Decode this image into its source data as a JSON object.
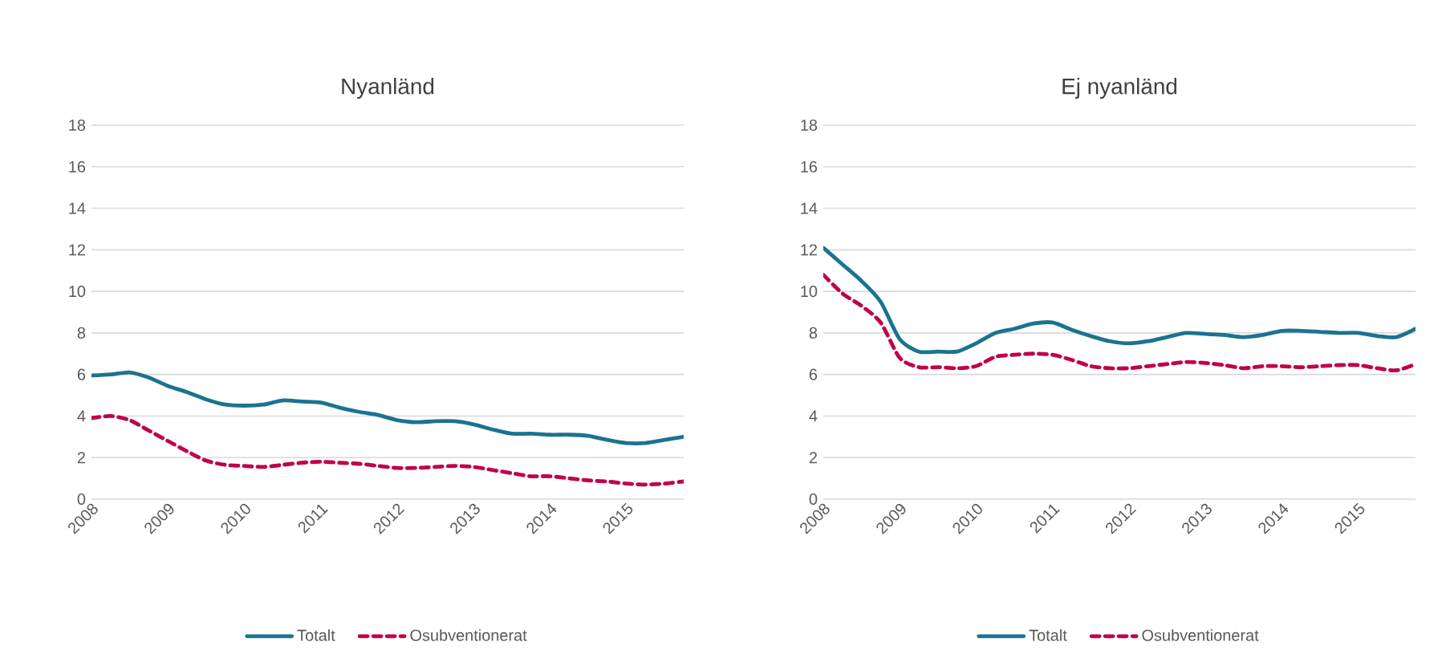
{
  "chart_data": [
    {
      "type": "line",
      "title": "Nyanländ",
      "x": [
        2008,
        2008.25,
        2008.5,
        2008.75,
        2009,
        2009.25,
        2009.5,
        2009.75,
        2010,
        2010.25,
        2010.5,
        2010.75,
        2011,
        2011.25,
        2011.5,
        2011.75,
        2012,
        2012.25,
        2012.5,
        2012.75,
        2013,
        2013.25,
        2013.5,
        2013.75,
        2014,
        2014.25,
        2014.5,
        2014.75,
        2015,
        2015.25,
        2015.5,
        2015.75
      ],
      "series": [
        {
          "name": "Totalt",
          "color": "#1b7391",
          "line_style": "solid",
          "values": [
            5.95,
            6.0,
            6.1,
            5.85,
            5.45,
            5.15,
            4.8,
            4.55,
            4.5,
            4.55,
            4.75,
            4.7,
            4.65,
            4.4,
            4.2,
            4.05,
            3.8,
            3.7,
            3.75,
            3.75,
            3.6,
            3.35,
            3.15,
            3.15,
            3.1,
            3.1,
            3.05,
            2.85,
            2.7,
            2.7,
            2.85,
            3.0
          ]
        },
        {
          "name": "Osubventionerat",
          "color": "#c0004b",
          "line_style": "dashed",
          "values": [
            3.9,
            4.0,
            3.8,
            3.3,
            2.8,
            2.3,
            1.85,
            1.65,
            1.6,
            1.55,
            1.65,
            1.75,
            1.8,
            1.75,
            1.7,
            1.6,
            1.5,
            1.5,
            1.55,
            1.6,
            1.55,
            1.4,
            1.25,
            1.1,
            1.1,
            1.0,
            0.9,
            0.85,
            0.75,
            0.7,
            0.75,
            0.85
          ]
        }
      ],
      "xlim": [
        2008,
        2015.75
      ],
      "xticks": [
        2008,
        2009,
        2010,
        2011,
        2012,
        2013,
        2014,
        2015
      ],
      "ylim": [
        0,
        18
      ],
      "yticks": [
        0,
        2,
        4,
        6,
        8,
        10,
        12,
        14,
        16,
        18
      ],
      "grid": "y",
      "legend": "bottom",
      "marker": "none"
    },
    {
      "type": "line",
      "title": "Ej nyanländ",
      "x": [
        2008,
        2008.25,
        2008.5,
        2008.75,
        2009,
        2009.25,
        2009.5,
        2009.75,
        2010,
        2010.25,
        2010.5,
        2010.75,
        2011,
        2011.25,
        2011.5,
        2011.75,
        2012,
        2012.25,
        2012.5,
        2012.75,
        2013,
        2013.25,
        2013.5,
        2013.75,
        2014,
        2014.25,
        2014.5,
        2014.75,
        2015,
        2015.25,
        2015.5,
        2015.75
      ],
      "series": [
        {
          "name": "Totalt",
          "color": "#1b7391",
          "line_style": "solid",
          "values": [
            12.1,
            11.3,
            10.5,
            9.5,
            7.7,
            7.1,
            7.1,
            7.1,
            7.5,
            8.0,
            8.2,
            8.45,
            8.5,
            8.15,
            7.85,
            7.6,
            7.5,
            7.6,
            7.8,
            8.0,
            7.95,
            7.9,
            7.8,
            7.9,
            8.1,
            8.1,
            8.05,
            8.0,
            8.0,
            7.85,
            7.8,
            8.2
          ]
        },
        {
          "name": "Osubventionerat",
          "color": "#c0004b",
          "line_style": "dashed",
          "values": [
            10.8,
            9.9,
            9.3,
            8.5,
            6.8,
            6.35,
            6.35,
            6.3,
            6.4,
            6.85,
            6.95,
            7.0,
            6.95,
            6.7,
            6.4,
            6.3,
            6.3,
            6.4,
            6.5,
            6.6,
            6.55,
            6.45,
            6.3,
            6.4,
            6.4,
            6.35,
            6.4,
            6.45,
            6.45,
            6.3,
            6.2,
            6.5
          ]
        }
      ],
      "xlim": [
        2008,
        2015.75
      ],
      "xticks": [
        2008,
        2009,
        2010,
        2011,
        2012,
        2013,
        2014,
        2015
      ],
      "ylim": [
        0,
        18
      ],
      "yticks": [
        0,
        2,
        4,
        6,
        8,
        10,
        12,
        14,
        16,
        18
      ],
      "grid": "y",
      "legend": "bottom",
      "marker": "none"
    }
  ]
}
